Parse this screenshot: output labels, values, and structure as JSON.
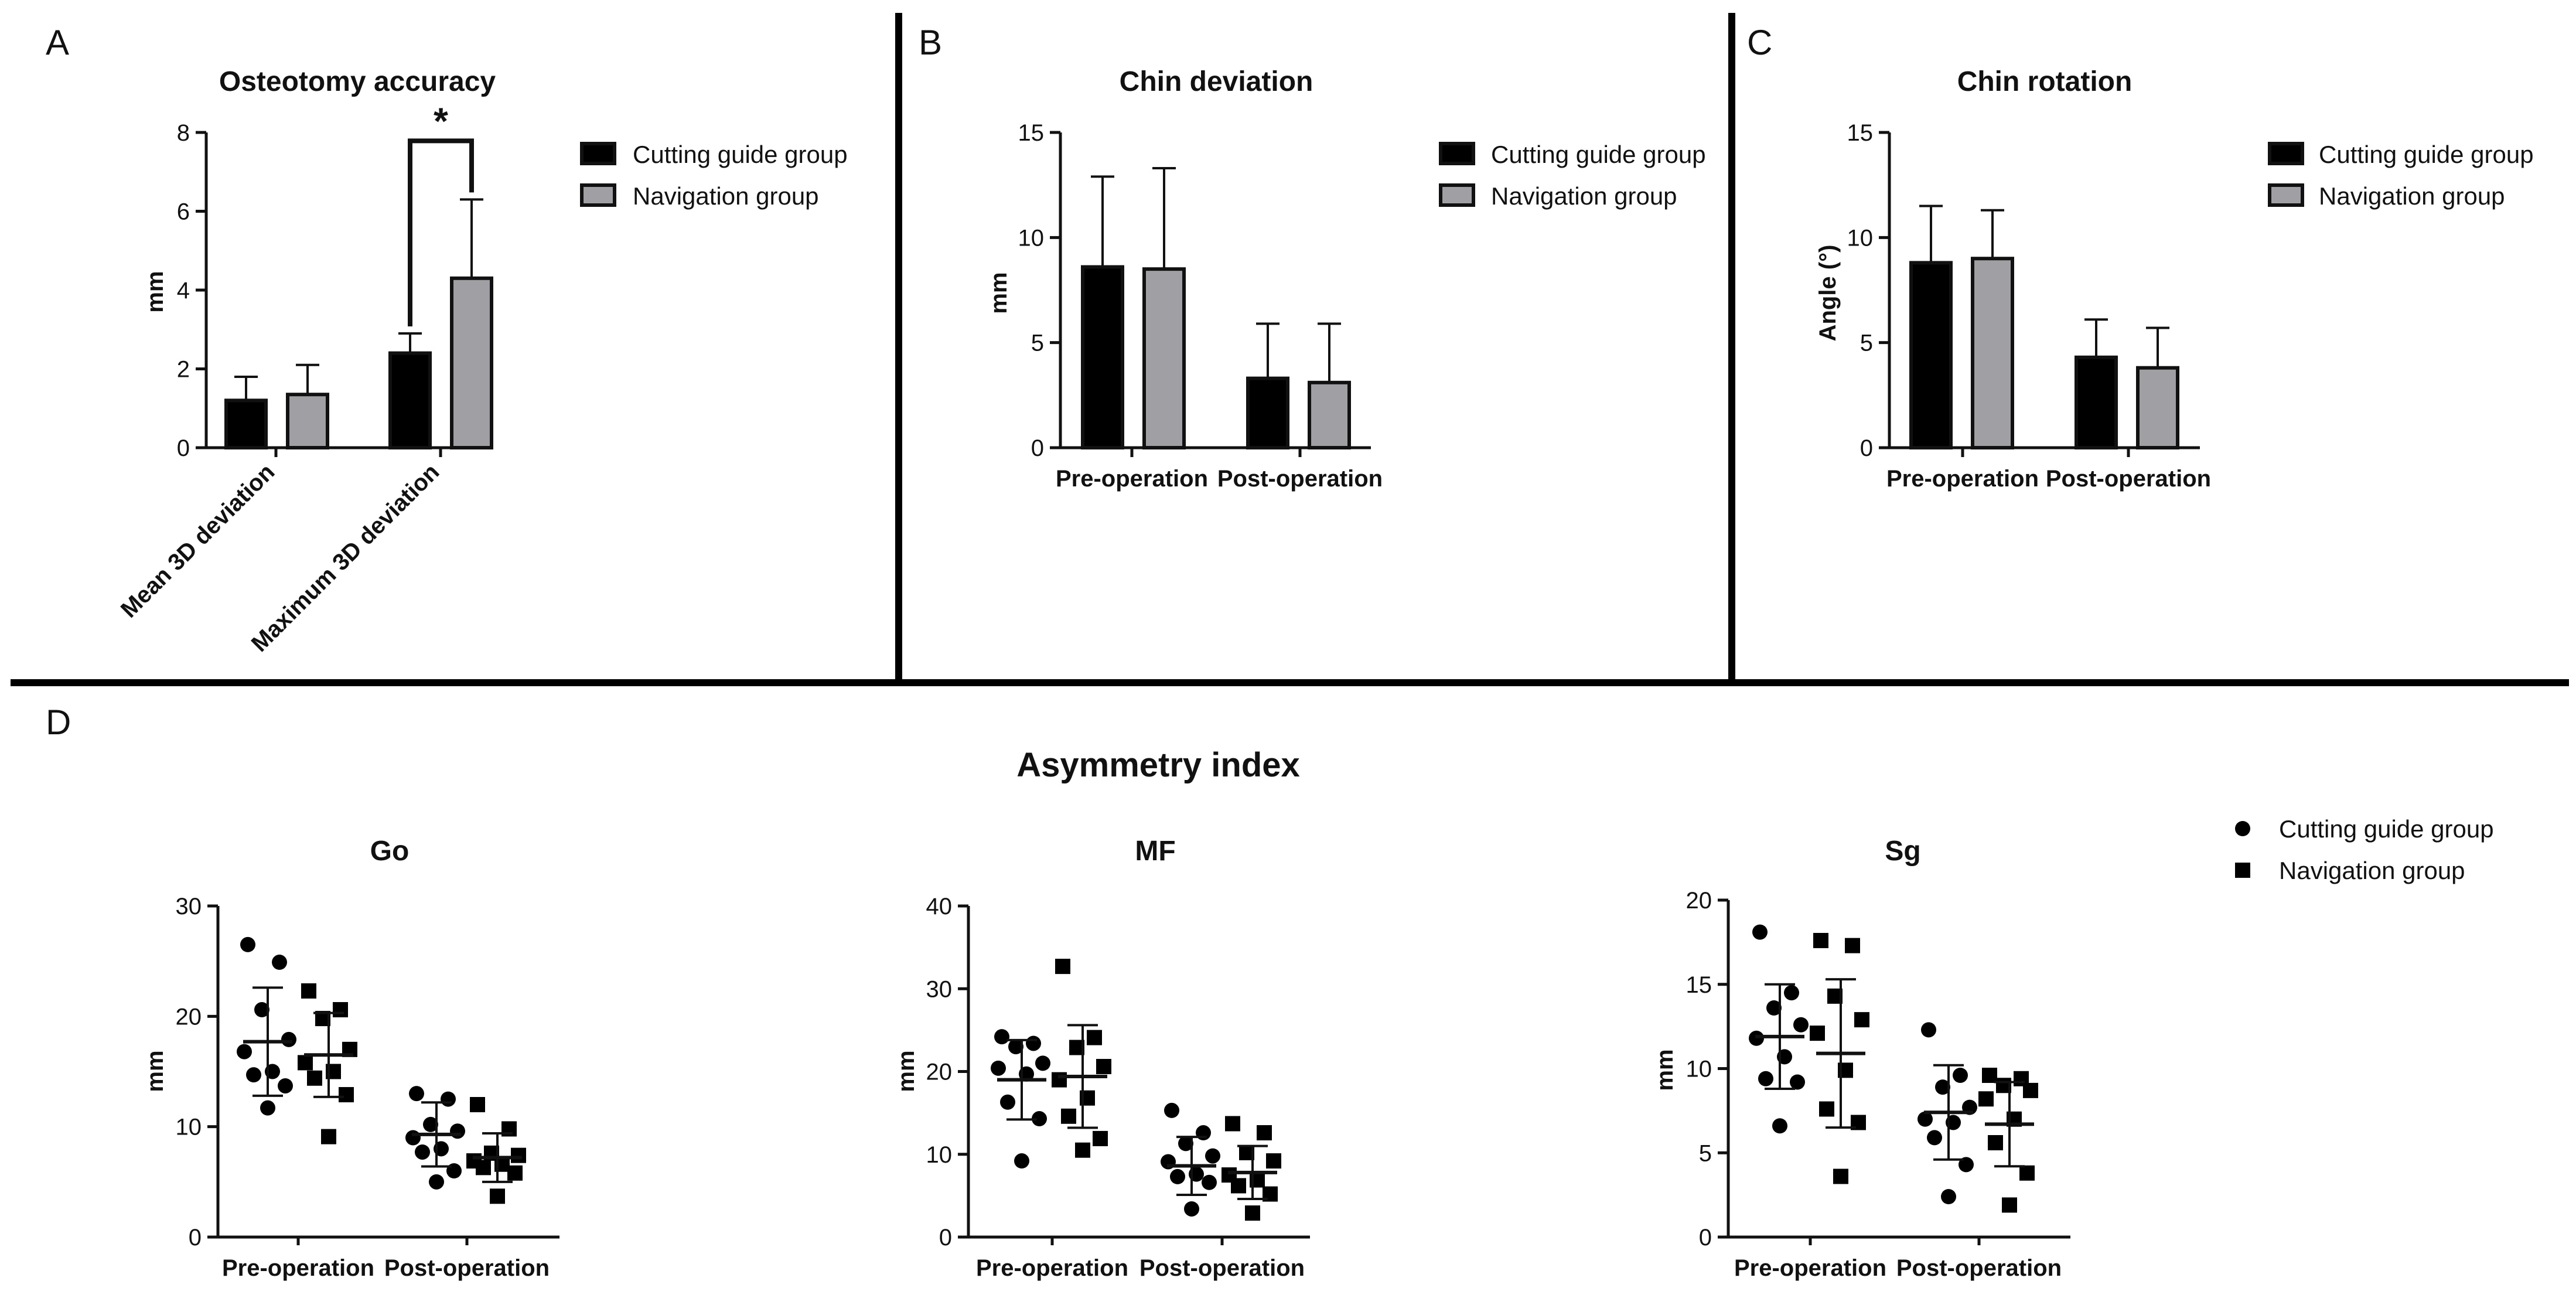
{
  "colors": {
    "cutting_guide": "#000000",
    "navigation": "#a0a0a4",
    "outline": "#111111",
    "divider": "#000000"
  },
  "panels": {
    "A": {
      "letter": "A"
    },
    "B": {
      "letter": "B"
    },
    "C": {
      "letter": "C"
    },
    "D": {
      "letter": "D",
      "title": "Asymmetry index"
    }
  },
  "legend": {
    "cutting": "Cutting guide group",
    "navigation": "Navigation group"
  },
  "chart_data": [
    {
      "id": "A",
      "type": "bar",
      "title": "Osteotomy accuracy",
      "ylabel": "mm",
      "xlabel": "",
      "ylim": [
        0,
        8
      ],
      "yticks": [
        0,
        2,
        4,
        6,
        8
      ],
      "categories": [
        "Mean 3D deviation",
        "Maximum 3D deviation"
      ],
      "series": [
        {
          "name": "Cutting guide group",
          "values": [
            1.2,
            2.4
          ],
          "errors": [
            0.6,
            0.5
          ]
        },
        {
          "name": "Navigation group",
          "values": [
            1.35,
            4.3
          ],
          "errors": [
            0.75,
            2.0
          ]
        }
      ],
      "significance": {
        "category": "Maximum 3D deviation",
        "label": "*"
      },
      "legend_position": "right"
    },
    {
      "id": "B",
      "type": "bar",
      "title": "Chin deviation",
      "ylabel": "mm",
      "xlabel": "",
      "ylim": [
        0,
        15
      ],
      "yticks": [
        0,
        5,
        10,
        15
      ],
      "categories": [
        "Pre-operation",
        "Post-operation"
      ],
      "series": [
        {
          "name": "Cutting guide group",
          "values": [
            8.6,
            3.3
          ],
          "errors": [
            4.3,
            2.6
          ]
        },
        {
          "name": "Navigation group",
          "values": [
            8.5,
            3.1
          ],
          "errors": [
            4.8,
            2.8
          ]
        }
      ],
      "legend_position": "right"
    },
    {
      "id": "C",
      "type": "bar",
      "title": "Chin rotation",
      "ylabel": "Angle (°)",
      "xlabel": "",
      "ylim": [
        0,
        15
      ],
      "yticks": [
        0,
        5,
        10,
        15
      ],
      "categories": [
        "Pre-operation",
        "Post-operation"
      ],
      "series": [
        {
          "name": "Cutting guide group",
          "values": [
            8.8,
            4.3
          ],
          "errors": [
            2.7,
            1.8
          ]
        },
        {
          "name": "Navigation group",
          "values": [
            9.0,
            3.8
          ],
          "errors": [
            2.3,
            1.9
          ]
        }
      ],
      "legend_position": "right"
    },
    {
      "id": "D-Go",
      "type": "scatter",
      "title": "Go",
      "ylabel": "mm",
      "xlabel": "",
      "ylim": [
        0,
        30
      ],
      "yticks": [
        0,
        10,
        20,
        30
      ],
      "categories": [
        "Pre-operation",
        "Post-operation"
      ],
      "groups": [
        {
          "category": "Pre-operation",
          "series": "Cutting guide group",
          "mean": 17.7,
          "sd": 4.9,
          "points": [
            26.5,
            24.9,
            20.6,
            17.9,
            16.8,
            15.0,
            14.7,
            13.7,
            11.7
          ]
        },
        {
          "category": "Pre-operation",
          "series": "Navigation group",
          "mean": 16.5,
          "sd": 3.8,
          "points": [
            22.3,
            20.6,
            19.8,
            17.0,
            15.8,
            15.0,
            14.4,
            12.9,
            9.1
          ]
        },
        {
          "category": "Post-operation",
          "series": "Cutting guide group",
          "mean": 9.3,
          "sd": 2.9,
          "points": [
            13.0,
            12.5,
            10.2,
            9.6,
            9.0,
            8.0,
            7.7,
            6.0,
            5.0
          ]
        },
        {
          "category": "Post-operation",
          "series": "Navigation group",
          "mean": 7.2,
          "sd": 2.2,
          "points": [
            12.0,
            9.8,
            7.6,
            7.4,
            6.9,
            6.6,
            6.3,
            5.8,
            3.7
          ]
        }
      ],
      "legend_position": "none"
    },
    {
      "id": "D-MF",
      "type": "scatter",
      "title": "MF",
      "ylabel": "mm",
      "xlabel": "",
      "ylim": [
        0,
        40
      ],
      "yticks": [
        0,
        10,
        20,
        30,
        40
      ],
      "categories": [
        "Pre-operation",
        "Post-operation"
      ],
      "groups": [
        {
          "category": "Pre-operation",
          "series": "Cutting guide group",
          "mean": 19.0,
          "sd": 4.8,
          "points": [
            24.2,
            23.4,
            23.0,
            21.0,
            20.4,
            19.7,
            16.3,
            14.3,
            9.2
          ]
        },
        {
          "category": "Pre-operation",
          "series": "Navigation group",
          "mean": 19.4,
          "sd": 6.2,
          "points": [
            32.7,
            24.1,
            22.9,
            20.6,
            19.0,
            16.8,
            14.6,
            11.9,
            10.5
          ]
        },
        {
          "category": "Post-operation",
          "series": "Cutting guide group",
          "mean": 8.6,
          "sd": 3.5,
          "points": [
            15.3,
            12.6,
            11.3,
            9.8,
            9.1,
            7.6,
            7.3,
            6.6,
            3.4
          ]
        },
        {
          "category": "Post-operation",
          "series": "Navigation group",
          "mean": 7.8,
          "sd": 3.2,
          "points": [
            13.7,
            12.6,
            10.2,
            9.2,
            7.5,
            6.9,
            6.2,
            5.2,
            2.9
          ]
        }
      ],
      "legend_position": "none"
    },
    {
      "id": "D-Sg",
      "type": "scatter",
      "title": "Sg",
      "ylabel": "mm",
      "xlabel": "",
      "ylim": [
        0,
        20
      ],
      "yticks": [
        0,
        5,
        10,
        15,
        20
      ],
      "categories": [
        "Pre-operation",
        "Post-operation"
      ],
      "groups": [
        {
          "category": "Pre-operation",
          "series": "Cutting guide group",
          "mean": 11.9,
          "sd": 3.1,
          "points": [
            18.1,
            14.5,
            13.6,
            12.6,
            11.8,
            10.7,
            9.4,
            9.2,
            6.6
          ]
        },
        {
          "category": "Pre-operation",
          "series": "Navigation group",
          "mean": 10.9,
          "sd": 4.4,
          "points": [
            17.6,
            17.3,
            14.3,
            12.9,
            12.1,
            9.9,
            7.6,
            6.8,
            3.6
          ]
        },
        {
          "category": "Post-operation",
          "series": "Cutting guide group",
          "mean": 7.4,
          "sd": 2.8,
          "points": [
            12.3,
            9.6,
            8.9,
            7.7,
            7.0,
            6.8,
            5.9,
            4.3,
            2.4
          ]
        },
        {
          "category": "Post-operation",
          "series": "Navigation group",
          "mean": 6.7,
          "sd": 2.5,
          "points": [
            9.6,
            9.4,
            9.0,
            8.7,
            8.2,
            7.0,
            5.6,
            3.8,
            1.9
          ]
        }
      ],
      "legend_position": "top-right"
    }
  ]
}
